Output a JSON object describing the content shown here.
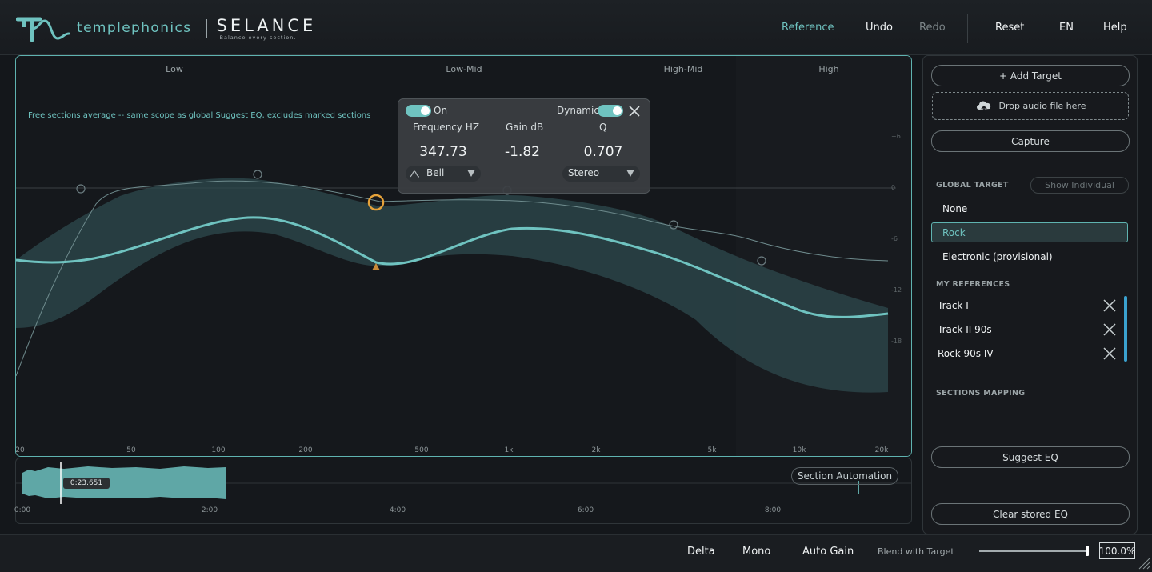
{
  "header": {
    "brand": "templephonics",
    "product": "SELANCE",
    "tagline": "Balance every section.",
    "nav": {
      "reference": "Reference",
      "undo": "Undo",
      "redo": "Redo",
      "reset": "Reset",
      "language": "EN",
      "help": "Help"
    }
  },
  "eq": {
    "bands": [
      "Low",
      "Low-Mid",
      "High-Mid",
      "High"
    ],
    "info": "Free sections average -- same scope as global Suggest EQ, excludes marked sections",
    "freq_labels": [
      "20",
      "50",
      "100",
      "200",
      "500",
      "1k",
      "2k",
      "5k",
      "10k",
      "20k"
    ],
    "db_labels": [
      "+6",
      "0",
      "-6",
      "-12",
      "-18"
    ],
    "popup": {
      "on_label": "On",
      "dynamic_label": "Dynamic",
      "freq_header": "Frequency HZ",
      "gain_header": "Gain dB",
      "q_header": "Q",
      "freq_value": "347.73",
      "gain_value": "-1.82",
      "q_value": "0.707",
      "filter_type": "Bell",
      "channel": "Stereo"
    }
  },
  "timeline": {
    "time_labels": [
      "0:00",
      "2:00",
      "4:00",
      "6:00",
      "8:00"
    ],
    "playhead_time": "0:23.651",
    "section_automation": "Section Automation"
  },
  "panel": {
    "add_target": "+ Add Target",
    "drop_audio": "Drop audio file here",
    "capture": "Capture",
    "global_target_title": "GLOBAL TARGET",
    "show_individual": "Show Individual",
    "targets": [
      "None",
      "Rock",
      "Electronic (provisional)"
    ],
    "selected_target": "Rock",
    "my_references_title": "MY REFERENCES",
    "references": [
      "Track I",
      "Track II 90s",
      "Rock 90s IV"
    ],
    "sections_mapping_title": "SECTIONS MAPPING",
    "suggest_eq": "Suggest EQ",
    "clear_stored_eq": "Clear stored EQ"
  },
  "footer": {
    "delta": "Delta",
    "mono": "Mono",
    "auto_gain": "Auto Gain",
    "blend_label": "Blend with Target",
    "blend_value": "100.0%"
  },
  "colors": {
    "accent": "#6fc3c0",
    "node_active": "#e5a23a",
    "background": "#14171b"
  }
}
